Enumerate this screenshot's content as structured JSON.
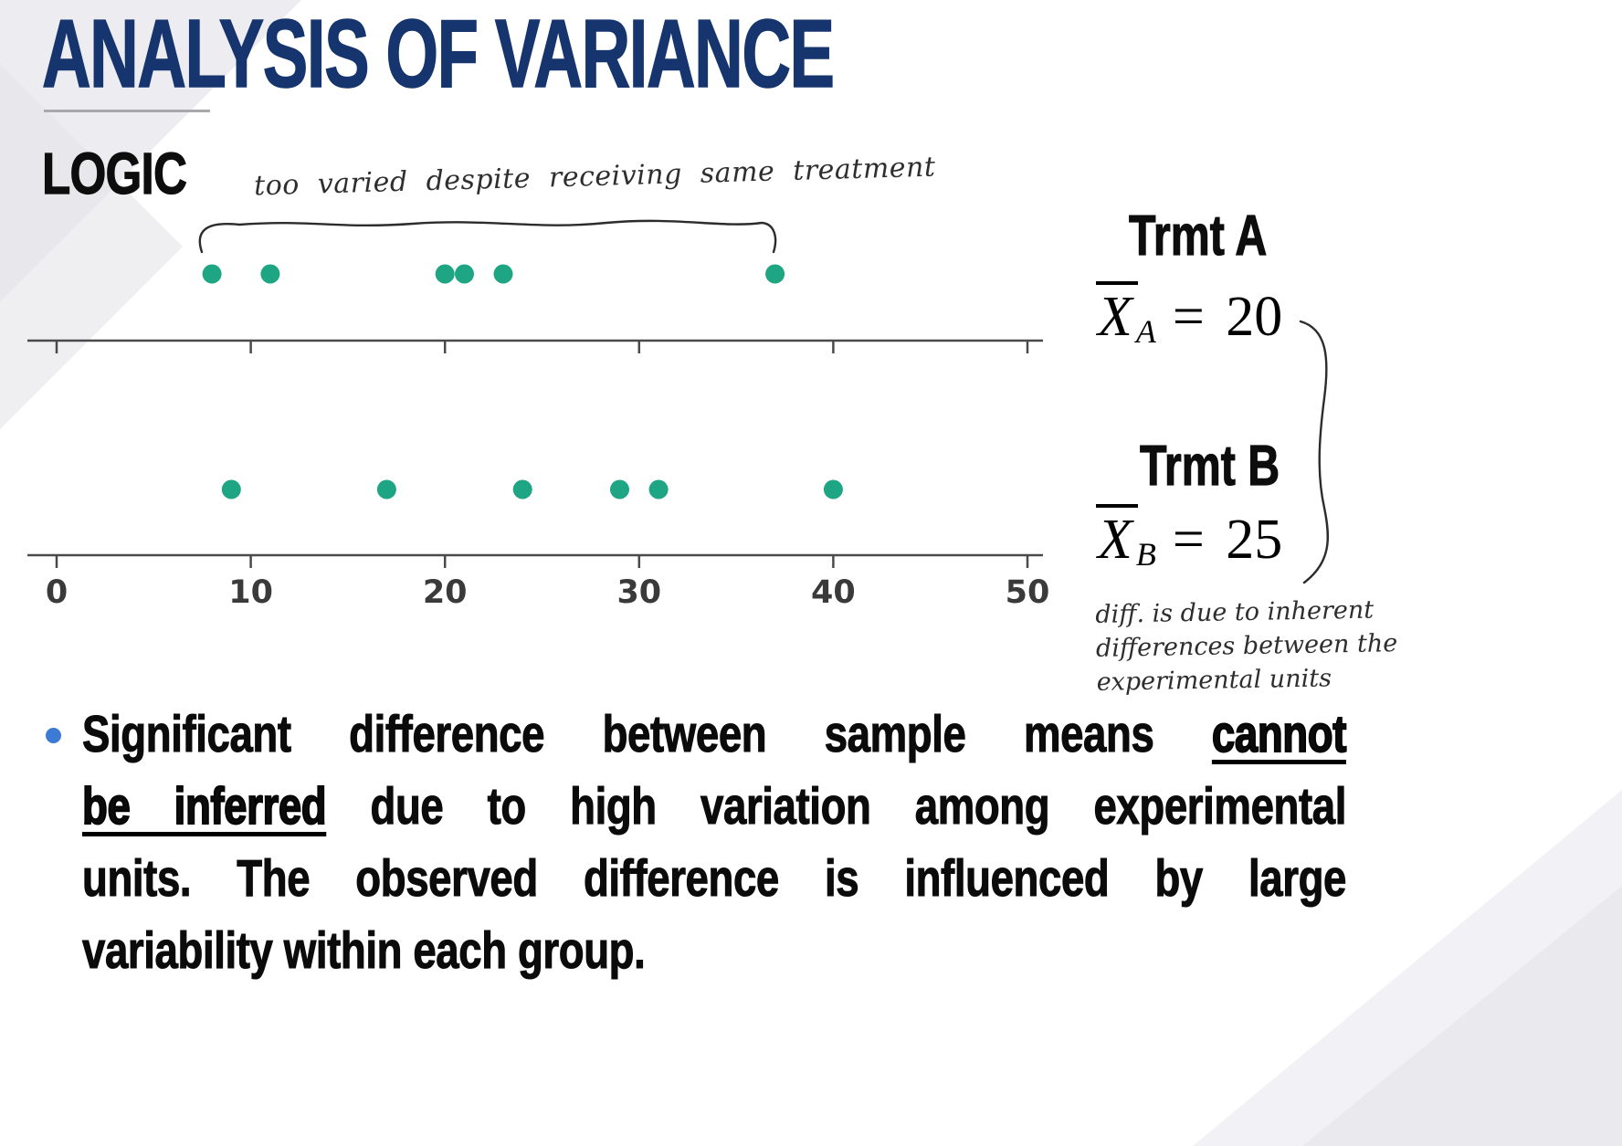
{
  "slide": {
    "title": "ANALYSIS OF VARIANCE",
    "subtitle": "LOGIC"
  },
  "annotations": {
    "top_note": "too varied despite receiving same treatment",
    "side_note_lines": [
      "diff. is due to inherent",
      "differences between the",
      "experimental units"
    ]
  },
  "equations": {
    "a": {
      "symbol": "X",
      "subscript": "A",
      "rhs": "= 20"
    },
    "b": {
      "symbol": "X",
      "subscript": "B",
      "rhs": "= 25"
    }
  },
  "bullet": {
    "lines": [
      {
        "justify": true,
        "segments": [
          {
            "t": "Significant difference between sample means ",
            "e": false
          },
          {
            "t": "cannot",
            "e": true
          }
        ]
      },
      {
        "justify": true,
        "segments": [
          {
            "t": "be inferred",
            "e": true
          },
          {
            "t": " due to high variation among experimental",
            "e": false
          }
        ]
      },
      {
        "justify": true,
        "segments": [
          {
            "t": "units. The observed difference is influenced by large",
            "e": false
          }
        ]
      },
      {
        "justify": false,
        "segments": [
          {
            "t": "variability within each group.",
            "e": false
          }
        ]
      }
    ]
  },
  "chart_data": {
    "type": "scatter",
    "subtype": "dot-strip-plot",
    "title": "",
    "xlabel": "",
    "ylabel": "",
    "xlim": [
      0,
      50
    ],
    "x_ticks": [
      0,
      10,
      20,
      30,
      40,
      50
    ],
    "grid": false,
    "dot_color": "#1ea583",
    "axis_color": "#4a4a4a",
    "tick_label_color": "#3a3a3a",
    "series": [
      {
        "name": "Trmt A",
        "values": [
          8,
          11,
          20,
          21,
          23,
          37
        ],
        "mean": 20
      },
      {
        "name": "Trmt B",
        "values": [
          9,
          17,
          24,
          29,
          31,
          40
        ],
        "mean": 25
      }
    ]
  },
  "colors": {
    "title": "#16346d",
    "bullet_dot": "#3d7ad4"
  }
}
